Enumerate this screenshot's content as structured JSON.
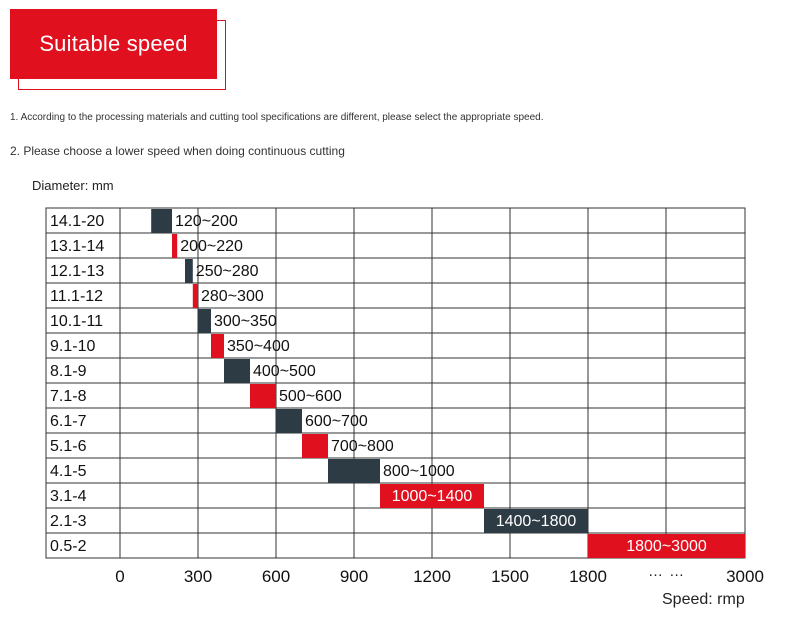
{
  "header": {
    "badge_label": "Suitable speed",
    "notes": [
      "1. According to the processing materials and cutting tool specifications are different, please select the appropriate speed.",
      "2. Please choose a lower speed when doing continuous cutting"
    ]
  },
  "chart_data": {
    "type": "bar",
    "orientation": "horizontal",
    "subtype": "range",
    "ylabel": "Diameter: mm",
    "xlabel": "Speed: rmp",
    "xlim": [
      0,
      3000
    ],
    "x_ticks": [
      "0",
      "300",
      "600",
      "900",
      "1200",
      "1500",
      "1800",
      "3000"
    ],
    "x_ellipsis": "… …",
    "axis_break": "after 1800",
    "grid": true,
    "categories": [
      "14.1-20",
      "13.1-14",
      "12.1-13",
      "11.1-12",
      "10.1-11",
      "9.1-10",
      "8.1-9",
      "7.1-8",
      "6.1-7",
      "5.1-6",
      "4.1-5",
      "3.1-4",
      "2.1-3",
      "0.5-2"
    ],
    "ranges": [
      {
        "min": 120,
        "max": 200,
        "label": "120~200",
        "color": "dark"
      },
      {
        "min": 200,
        "max": 220,
        "label": "200~220",
        "color": "red"
      },
      {
        "min": 250,
        "max": 280,
        "label": "250~280",
        "color": "dark"
      },
      {
        "min": 280,
        "max": 300,
        "label": "280~300",
        "color": "red"
      },
      {
        "min": 300,
        "max": 350,
        "label": "300~350",
        "color": "dark"
      },
      {
        "min": 350,
        "max": 400,
        "label": "350~400",
        "color": "red"
      },
      {
        "min": 400,
        "max": 500,
        "label": "400~500",
        "color": "dark"
      },
      {
        "min": 500,
        "max": 600,
        "label": "500~600",
        "color": "red"
      },
      {
        "min": 600,
        "max": 700,
        "label": "600~700",
        "color": "dark"
      },
      {
        "min": 700,
        "max": 800,
        "label": "700~800",
        "color": "red"
      },
      {
        "min": 800,
        "max": 1000,
        "label": "800~1000",
        "color": "dark"
      },
      {
        "min": 1000,
        "max": 1400,
        "label": "1000~1400",
        "color": "red"
      },
      {
        "min": 1400,
        "max": 1800,
        "label": "1400~1800",
        "color": "dark"
      },
      {
        "min": 1800,
        "max": 3000,
        "label": "1800~3000",
        "color": "red"
      }
    ],
    "colors": {
      "dark": "#2d3b45",
      "red": "#e0101f"
    }
  }
}
